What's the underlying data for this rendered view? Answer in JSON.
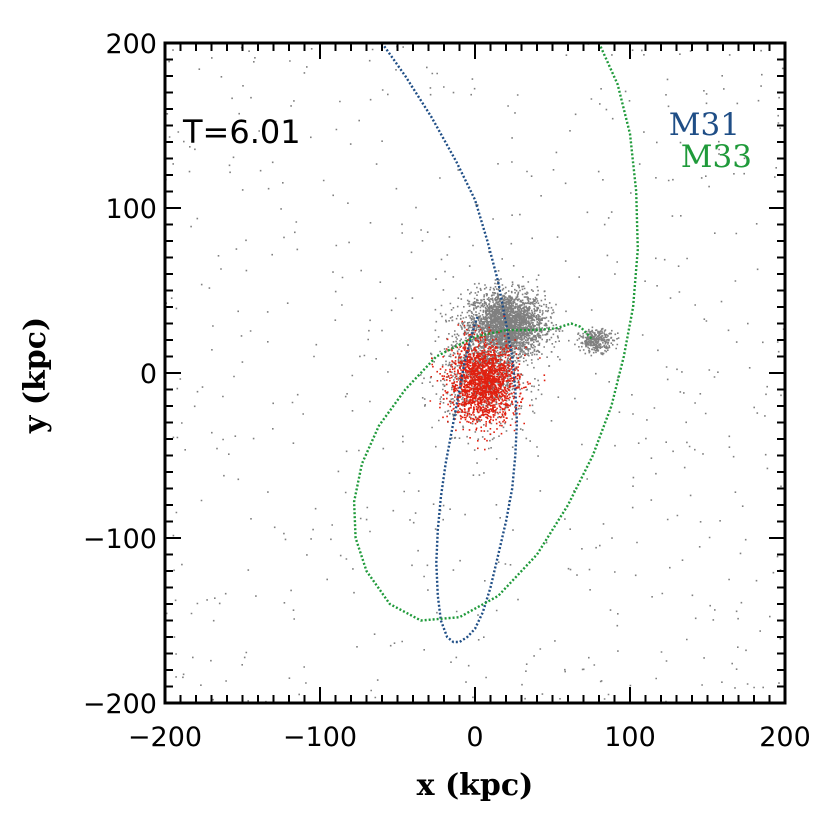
{
  "chart_data": {
    "type": "scatter",
    "title": "",
    "xlabel": "x (kpc)",
    "ylabel": "y (kpc)",
    "xlim": [
      -200,
      200
    ],
    "ylim": [
      -200,
      200
    ],
    "xticks": [
      -200,
      -100,
      0,
      100,
      200
    ],
    "yticks": [
      -200,
      -100,
      0,
      100,
      200
    ],
    "xtick_labels": [
      "−200",
      "−100",
      "0",
      "100",
      "200"
    ],
    "ytick_labels": [
      "−200",
      "−100",
      "0",
      "100",
      "200"
    ],
    "annotation": "T=6.01",
    "legend_position": "top-right",
    "colors": {
      "M31": "#1f4e86",
      "M33": "#1f9a3a",
      "particles_gray": "#808080",
      "particles_red": "#e02010"
    },
    "series": [
      {
        "name": "M31",
        "kind": "orbit",
        "x": [
          -60,
          -45,
          -28,
          -12,
          0,
          8,
          15,
          20,
          24,
          26,
          27,
          26,
          24,
          20,
          15,
          10,
          5,
          0,
          -5,
          -10,
          -14,
          -18,
          -22,
          -24,
          -25,
          -24,
          -22,
          -19,
          -15,
          -11,
          -7,
          -3,
          0,
          2
        ],
        "y": [
          200,
          180,
          155,
          128,
          105,
          80,
          55,
          30,
          10,
          -10,
          -30,
          -50,
          -70,
          -90,
          -110,
          -130,
          -145,
          -155,
          -160,
          -163,
          -163,
          -160,
          -150,
          -135,
          -115,
          -95,
          -75,
          -55,
          -35,
          -15,
          5,
          20,
          30,
          35
        ]
      },
      {
        "name": "M33",
        "kind": "orbit",
        "x": [
          80,
          92,
          100,
          104,
          105,
          102,
          96,
          88,
          76,
          60,
          40,
          15,
          -10,
          -35,
          -55,
          -70,
          -77,
          -78,
          -73,
          -62,
          -45,
          -25,
          0,
          20,
          38,
          52,
          62,
          68,
          72,
          76
        ],
        "y": [
          200,
          175,
          145,
          110,
          75,
          40,
          10,
          -20,
          -50,
          -80,
          -110,
          -135,
          -148,
          -150,
          -140,
          -120,
          -100,
          -78,
          -55,
          -32,
          -10,
          10,
          22,
          26,
          26,
          27,
          30,
          28,
          24,
          20
        ]
      }
    ],
    "particle_clouds": [
      {
        "color": "gray",
        "center": [
          20,
          30
        ],
        "spread": [
          22,
          18
        ],
        "count": 2600
      },
      {
        "color": "gray",
        "center": [
          5,
          0
        ],
        "spread": [
          25,
          30
        ],
        "count": 900
      },
      {
        "color": "gray",
        "center": [
          78,
          20
        ],
        "spread": [
          10,
          6
        ],
        "count": 300
      },
      {
        "color": "red",
        "center": [
          5,
          -5
        ],
        "spread": [
          20,
          22
        ],
        "count": 1800
      },
      {
        "color": "gray",
        "center": [
          0,
          0
        ],
        "spread": [
          200,
          200
        ],
        "count": 600
      }
    ]
  }
}
